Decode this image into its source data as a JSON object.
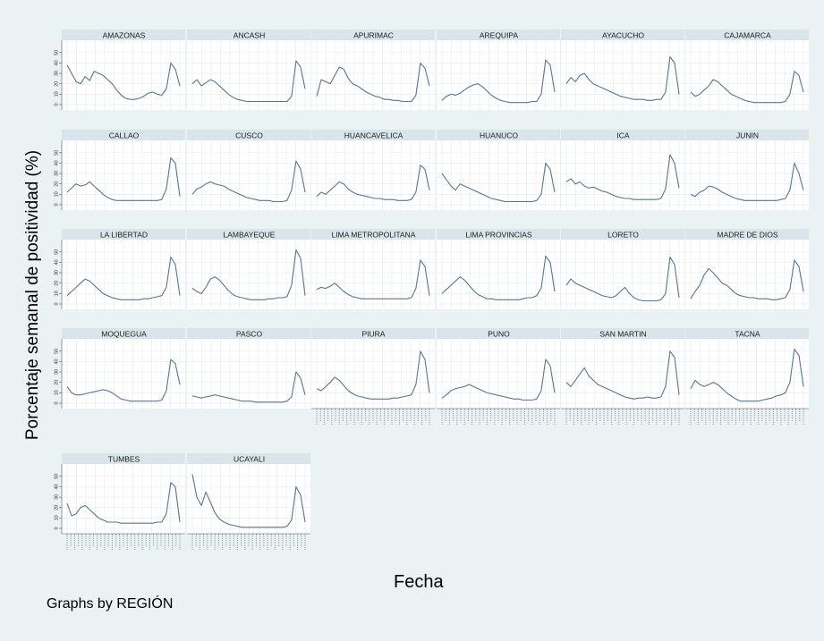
{
  "chart_data": {
    "type": "line",
    "ylabel": "Porcentaje semanal de positividad (%)",
    "xlabel": "Fecha",
    "note": "Graphs by REGIÓN",
    "ylim": [
      0,
      55
    ],
    "yticks": [
      0,
      10,
      20,
      30,
      40,
      50
    ],
    "grid": true,
    "line_color": "#5a7590",
    "panels": [
      {
        "name": "AMAZONAS",
        "values": [
          38,
          30,
          22,
          20,
          27,
          23,
          32,
          30,
          28,
          24,
          20,
          14,
          9,
          6,
          5,
          5,
          6,
          8,
          11,
          12,
          10,
          9,
          15,
          40,
          34,
          18
        ]
      },
      {
        "name": "ANCASH",
        "values": [
          20,
          24,
          18,
          21,
          24,
          22,
          18,
          14,
          10,
          7,
          5,
          4,
          3,
          3,
          3,
          3,
          3,
          3,
          3,
          3,
          3,
          3,
          8,
          42,
          36,
          15
        ]
      },
      {
        "name": "APURIMAC",
        "values": [
          8,
          24,
          22,
          20,
          28,
          36,
          34,
          25,
          20,
          18,
          15,
          12,
          10,
          8,
          7,
          5,
          5,
          4,
          4,
          3,
          3,
          3,
          9,
          40,
          35,
          18
        ]
      },
      {
        "name": "AREQUIPA",
        "values": [
          4,
          8,
          10,
          9,
          11,
          14,
          17,
          19,
          20,
          17,
          13,
          9,
          6,
          4,
          3,
          2,
          2,
          2,
          2,
          2,
          3,
          3,
          10,
          43,
          38,
          12
        ]
      },
      {
        "name": "AYACUCHO",
        "values": [
          20,
          26,
          22,
          28,
          30,
          24,
          20,
          18,
          16,
          14,
          12,
          10,
          8,
          7,
          6,
          5,
          5,
          5,
          4,
          4,
          5,
          5,
          12,
          46,
          40,
          10
        ]
      },
      {
        "name": "CAJAMARCA",
        "values": [
          12,
          8,
          10,
          14,
          18,
          24,
          22,
          18,
          14,
          10,
          8,
          6,
          4,
          3,
          2,
          2,
          2,
          2,
          2,
          2,
          2,
          3,
          10,
          32,
          28,
          12
        ]
      },
      {
        "name": "CALLAO",
        "values": [
          12,
          16,
          20,
          18,
          19,
          22,
          18,
          14,
          10,
          7,
          5,
          4,
          4,
          4,
          4,
          4,
          4,
          4,
          4,
          4,
          4,
          5,
          15,
          45,
          40,
          8
        ]
      },
      {
        "name": "CUSCO",
        "values": [
          10,
          15,
          17,
          20,
          22,
          20,
          19,
          18,
          15,
          13,
          11,
          9,
          7,
          6,
          5,
          4,
          4,
          4,
          3,
          3,
          3,
          4,
          14,
          42,
          34,
          12
        ]
      },
      {
        "name": "HUANCAVELICA",
        "values": [
          8,
          12,
          10,
          14,
          18,
          22,
          20,
          15,
          12,
          10,
          9,
          8,
          7,
          6,
          6,
          5,
          5,
          5,
          4,
          4,
          4,
          5,
          12,
          38,
          34,
          14
        ]
      },
      {
        "name": "HUANUCO",
        "values": [
          30,
          24,
          18,
          14,
          20,
          18,
          16,
          14,
          12,
          10,
          8,
          6,
          5,
          4,
          3,
          3,
          3,
          3,
          3,
          3,
          3,
          4,
          10,
          40,
          34,
          12
        ]
      },
      {
        "name": "ICA",
        "values": [
          22,
          25,
          20,
          22,
          18,
          16,
          17,
          15,
          13,
          12,
          10,
          8,
          7,
          6,
          6,
          5,
          5,
          5,
          5,
          5,
          5,
          6,
          15,
          48,
          40,
          16
        ]
      },
      {
        "name": "JUNIN",
        "values": [
          10,
          8,
          12,
          14,
          18,
          17,
          15,
          12,
          10,
          8,
          6,
          5,
          4,
          4,
          4,
          4,
          4,
          4,
          4,
          4,
          5,
          6,
          14,
          40,
          30,
          14
        ]
      },
      {
        "name": "LA LIBERTAD",
        "values": [
          8,
          12,
          16,
          20,
          24,
          22,
          18,
          14,
          10,
          8,
          6,
          5,
          4,
          4,
          4,
          4,
          4,
          5,
          5,
          6,
          7,
          8,
          16,
          45,
          38,
          8
        ]
      },
      {
        "name": "LAMBAYEQUE",
        "values": [
          15,
          12,
          10,
          16,
          24,
          26,
          23,
          18,
          13,
          9,
          7,
          6,
          5,
          4,
          4,
          4,
          4,
          5,
          5,
          6,
          6,
          7,
          18,
          52,
          44,
          8
        ]
      },
      {
        "name": "LIMA METROPOLITANA",
        "values": [
          14,
          16,
          15,
          17,
          20,
          16,
          12,
          9,
          7,
          6,
          5,
          5,
          5,
          5,
          5,
          5,
          5,
          5,
          5,
          5,
          5,
          6,
          15,
          42,
          36,
          8
        ]
      },
      {
        "name": "LIMA PROVINCIAS",
        "values": [
          10,
          14,
          18,
          22,
          26,
          23,
          18,
          13,
          9,
          7,
          5,
          5,
          4,
          4,
          4,
          4,
          4,
          4,
          5,
          6,
          6,
          8,
          15,
          46,
          40,
          12
        ]
      },
      {
        "name": "LORETO",
        "values": [
          18,
          24,
          20,
          18,
          16,
          14,
          12,
          10,
          8,
          7,
          6,
          8,
          12,
          16,
          10,
          6,
          4,
          3,
          3,
          3,
          3,
          4,
          10,
          45,
          38,
          6
        ]
      },
      {
        "name": "MADRE DE DIOS",
        "values": [
          5,
          12,
          18,
          28,
          34,
          30,
          25,
          20,
          18,
          14,
          10,
          8,
          7,
          6,
          6,
          5,
          5,
          5,
          4,
          4,
          5,
          6,
          14,
          42,
          36,
          12
        ]
      },
      {
        "name": "MOQUEGUA",
        "values": [
          16,
          10,
          8,
          8,
          9,
          10,
          11,
          12,
          13,
          12,
          10,
          7,
          4,
          3,
          2,
          2,
          2,
          2,
          2,
          2,
          2,
          3,
          12,
          42,
          38,
          18
        ]
      },
      {
        "name": "PASCO",
        "values": [
          7,
          6,
          5,
          6,
          7,
          8,
          7,
          6,
          5,
          4,
          3,
          2,
          2,
          2,
          1,
          1,
          1,
          1,
          1,
          1,
          1,
          2,
          6,
          30,
          24,
          8
        ]
      },
      {
        "name": "PIURA",
        "values": [
          14,
          12,
          16,
          20,
          25,
          22,
          17,
          12,
          9,
          7,
          6,
          5,
          4,
          4,
          4,
          4,
          4,
          5,
          5,
          6,
          7,
          8,
          18,
          50,
          42,
          10
        ]
      },
      {
        "name": "PUNO",
        "values": [
          5,
          8,
          12,
          14,
          15,
          16,
          18,
          16,
          14,
          12,
          10,
          9,
          8,
          7,
          6,
          5,
          4,
          4,
          3,
          3,
          3,
          4,
          12,
          42,
          36,
          10
        ]
      },
      {
        "name": "SAN MARTIN",
        "values": [
          20,
          16,
          22,
          28,
          34,
          26,
          22,
          18,
          16,
          14,
          12,
          10,
          8,
          6,
          5,
          4,
          5,
          5,
          6,
          5,
          5,
          6,
          16,
          50,
          44,
          8
        ]
      },
      {
        "name": "TACNA",
        "values": [
          14,
          22,
          18,
          16,
          18,
          20,
          18,
          14,
          10,
          7,
          4,
          2,
          2,
          2,
          2,
          2,
          3,
          4,
          5,
          7,
          8,
          10,
          20,
          52,
          46,
          16
        ]
      },
      {
        "name": "TUMBES",
        "values": [
          24,
          12,
          14,
          20,
          22,
          18,
          14,
          10,
          8,
          6,
          6,
          6,
          5,
          5,
          5,
          5,
          5,
          5,
          5,
          5,
          6,
          6,
          14,
          44,
          40,
          6
        ]
      },
      {
        "name": "UCAYALI",
        "values": [
          52,
          30,
          22,
          35,
          25,
          15,
          9,
          6,
          4,
          3,
          2,
          1,
          1,
          1,
          1,
          1,
          1,
          1,
          1,
          1,
          1,
          2,
          8,
          40,
          32,
          6
        ]
      }
    ]
  }
}
